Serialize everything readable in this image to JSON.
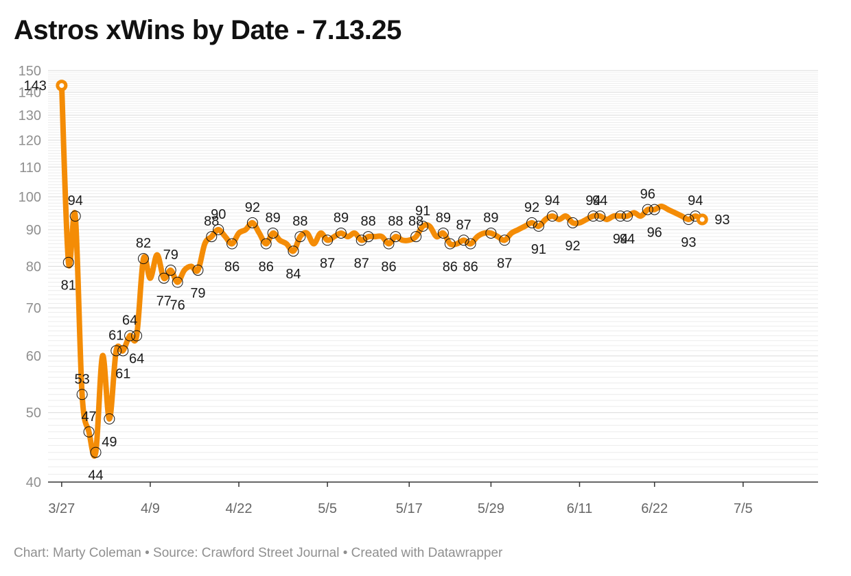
{
  "title": "Astros xWins by Date - 7.13.25",
  "footer": "Chart: Marty Coleman • Source: Crawford Street Journal • Created with Datawrapper",
  "chart_data": {
    "type": "line",
    "title": "Astros xWins by Date - 7.13.25",
    "xlabel": "",
    "ylabel": "",
    "y_scale": "log",
    "ylim": [
      40,
      150
    ],
    "y_ticks": [
      40,
      50,
      60,
      70,
      80,
      90,
      100,
      110,
      120,
      130,
      140,
      150
    ],
    "x_ticks": [
      "3/27",
      "4/9",
      "4/22",
      "5/5",
      "5/17",
      "5/29",
      "6/11",
      "6/22",
      "7/5"
    ],
    "xlim": [
      "2025-03-25",
      "2025-07-16"
    ],
    "grid": true,
    "line_color": "#f48c06",
    "points": [
      {
        "date": "2025-03-27",
        "value": 143,
        "label": "143"
      },
      {
        "date": "2025-03-28",
        "value": 81,
        "label": "81"
      },
      {
        "date": "2025-03-29",
        "value": 94,
        "label": "94"
      },
      {
        "date": "2025-03-30",
        "value": 53,
        "label": "53"
      },
      {
        "date": "2025-03-31",
        "value": 47,
        "label": "47"
      },
      {
        "date": "2025-04-01",
        "value": 44,
        "label": "44"
      },
      {
        "date": "2025-04-02",
        "value": 60
      },
      {
        "date": "2025-04-03",
        "value": 49,
        "label": "49"
      },
      {
        "date": "2025-04-04",
        "value": 61,
        "label": "61"
      },
      {
        "date": "2025-04-05",
        "value": 61,
        "label": "61"
      },
      {
        "date": "2025-04-06",
        "value": 64,
        "label": "64"
      },
      {
        "date": "2025-04-07",
        "value": 64,
        "label": "64"
      },
      {
        "date": "2025-04-08",
        "value": 82,
        "label": "82"
      },
      {
        "date": "2025-04-09",
        "value": 77
      },
      {
        "date": "2025-04-10",
        "value": 83
      },
      {
        "date": "2025-04-11",
        "value": 77,
        "label": "77"
      },
      {
        "date": "2025-04-12",
        "value": 79,
        "label": "79"
      },
      {
        "date": "2025-04-13",
        "value": 76,
        "label": "76"
      },
      {
        "date": "2025-04-14",
        "value": 79
      },
      {
        "date": "2025-04-15",
        "value": 80
      },
      {
        "date": "2025-04-16",
        "value": 79,
        "label": "79"
      },
      {
        "date": "2025-04-17",
        "value": 86
      },
      {
        "date": "2025-04-18",
        "value": 88,
        "label": "88"
      },
      {
        "date": "2025-04-19",
        "value": 90,
        "label": "90"
      },
      {
        "date": "2025-04-20",
        "value": 88
      },
      {
        "date": "2025-04-21",
        "value": 86,
        "label": "86"
      },
      {
        "date": "2025-04-22",
        "value": 89
      },
      {
        "date": "2025-04-23",
        "value": 90
      },
      {
        "date": "2025-04-24",
        "value": 92,
        "label": "92"
      },
      {
        "date": "2025-04-25",
        "value": 89
      },
      {
        "date": "2025-04-26",
        "value": 86,
        "label": "86"
      },
      {
        "date": "2025-04-27",
        "value": 89,
        "label": "89"
      },
      {
        "date": "2025-04-28",
        "value": 87
      },
      {
        "date": "2025-04-29",
        "value": 86
      },
      {
        "date": "2025-04-30",
        "value": 84,
        "label": "84"
      },
      {
        "date": "2025-05-01",
        "value": 88,
        "label": "88"
      },
      {
        "date": "2025-05-02",
        "value": 89
      },
      {
        "date": "2025-05-03",
        "value": 86
      },
      {
        "date": "2025-05-04",
        "value": 89
      },
      {
        "date": "2025-05-05",
        "value": 87,
        "label": "87"
      },
      {
        "date": "2025-05-06",
        "value": 88
      },
      {
        "date": "2025-05-07",
        "value": 89,
        "label": "89"
      },
      {
        "date": "2025-05-08",
        "value": 88
      },
      {
        "date": "2025-05-09",
        "value": 89
      },
      {
        "date": "2025-05-10",
        "value": 87,
        "label": "87"
      },
      {
        "date": "2025-05-11",
        "value": 88,
        "label": "88"
      },
      {
        "date": "2025-05-12",
        "value": 88
      },
      {
        "date": "2025-05-13",
        "value": 88
      },
      {
        "date": "2025-05-14",
        "value": 86,
        "label": "86"
      },
      {
        "date": "2025-05-15",
        "value": 88,
        "label": "88"
      },
      {
        "date": "2025-05-16",
        "value": 87
      },
      {
        "date": "2025-05-17",
        "value": 87
      },
      {
        "date": "2025-05-18",
        "value": 88,
        "label": "88"
      },
      {
        "date": "2025-05-19",
        "value": 91,
        "label": "91"
      },
      {
        "date": "2025-05-20",
        "value": 91
      },
      {
        "date": "2025-05-21",
        "value": 88
      },
      {
        "date": "2025-05-22",
        "value": 89,
        "label": "89"
      },
      {
        "date": "2025-05-23",
        "value": 86,
        "label": "86"
      },
      {
        "date": "2025-05-24",
        "value": 86
      },
      {
        "date": "2025-05-25",
        "value": 87,
        "label": "87"
      },
      {
        "date": "2025-05-26",
        "value": 86,
        "label": "86"
      },
      {
        "date": "2025-05-27",
        "value": 88
      },
      {
        "date": "2025-05-28",
        "value": 89
      },
      {
        "date": "2025-05-29",
        "value": 89,
        "label": "89"
      },
      {
        "date": "2025-05-30",
        "value": 88
      },
      {
        "date": "2025-05-31",
        "value": 87,
        "label": "87"
      },
      {
        "date": "2025-06-01",
        "value": 89
      },
      {
        "date": "2025-06-02",
        "value": 90
      },
      {
        "date": "2025-06-03",
        "value": 91
      },
      {
        "date": "2025-06-04",
        "value": 92,
        "label": "92"
      },
      {
        "date": "2025-06-05",
        "value": 91,
        "label": "91"
      },
      {
        "date": "2025-06-06",
        "value": 93
      },
      {
        "date": "2025-06-07",
        "value": 94,
        "label": "94"
      },
      {
        "date": "2025-06-08",
        "value": 93
      },
      {
        "date": "2025-06-09",
        "value": 94
      },
      {
        "date": "2025-06-10",
        "value": 92,
        "label": "92"
      },
      {
        "date": "2025-06-11",
        "value": 92
      },
      {
        "date": "2025-06-12",
        "value": 93
      },
      {
        "date": "2025-06-13",
        "value": 94,
        "label": "94"
      },
      {
        "date": "2025-06-14",
        "value": 94,
        "label": "94"
      },
      {
        "date": "2025-06-15",
        "value": 93
      },
      {
        "date": "2025-06-16",
        "value": 94
      },
      {
        "date": "2025-06-17",
        "value": 94,
        "label": "94"
      },
      {
        "date": "2025-06-18",
        "value": 94,
        "label": "94"
      },
      {
        "date": "2025-06-19",
        "value": 95
      },
      {
        "date": "2025-06-20",
        "value": 94
      },
      {
        "date": "2025-06-21",
        "value": 96,
        "label": "96"
      },
      {
        "date": "2025-06-22",
        "value": 96,
        "label": "96"
      },
      {
        "date": "2025-06-23",
        "value": 97
      },
      {
        "date": "2025-06-24",
        "value": 96
      },
      {
        "date": "2025-06-25",
        "value": 95
      },
      {
        "date": "2025-06-26",
        "value": 94
      },
      {
        "date": "2025-06-27",
        "value": 93,
        "label": "93"
      },
      {
        "date": "2025-06-28",
        "value": 94,
        "label": "94"
      },
      {
        "date": "2025-06-29",
        "value": 93,
        "label": "93"
      }
    ]
  }
}
